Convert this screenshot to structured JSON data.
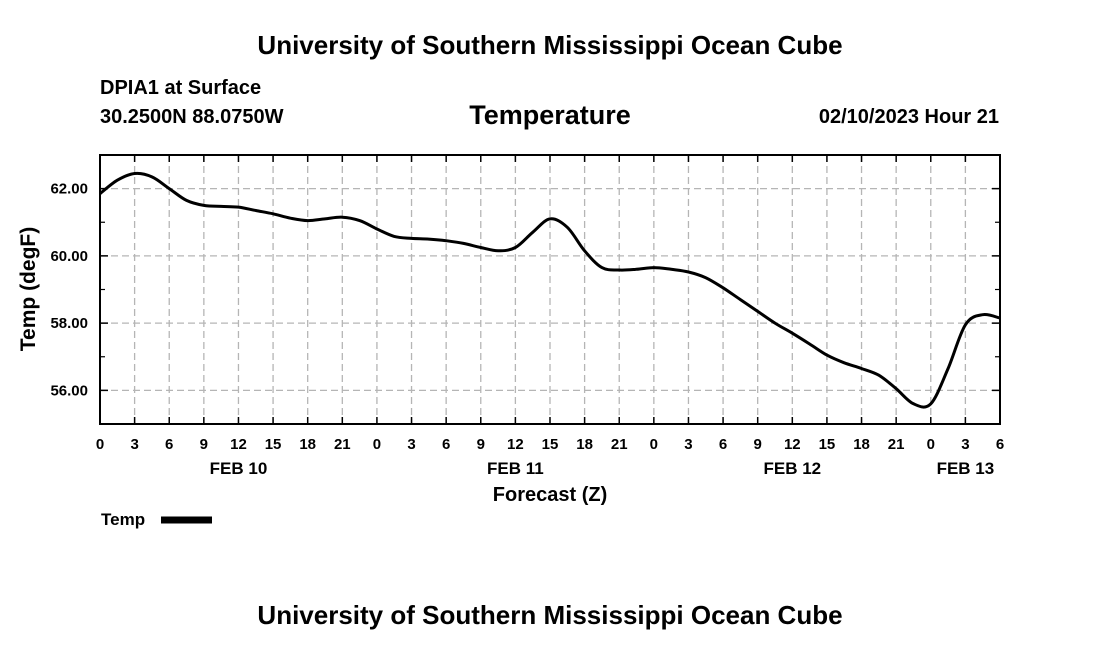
{
  "header": {
    "title": "University of Southern Mississippi Ocean Cube",
    "station": "DPIA1 at Surface",
    "coordinates": "30.2500N  88.0750W",
    "variable": "Temperature",
    "datetime": "02/10/2023 Hour 21"
  },
  "footer": {
    "title": "University of Southern Mississippi Ocean Cube"
  },
  "chart_data": {
    "type": "line",
    "ylabel": "Temp (degF)",
    "xlabel": "Forecast (Z)",
    "ylim": [
      55.0,
      63.0
    ],
    "xlim": [
      0,
      78
    ],
    "y_ticks": [
      56,
      58,
      60,
      62
    ],
    "y_tick_labels": [
      "56.00",
      "58.00",
      "60.00",
      "62.00"
    ],
    "x_tick_labels": [
      "0",
      "3",
      "6",
      "9",
      "12",
      "15",
      "18",
      "21",
      "0",
      "3",
      "6",
      "9",
      "12",
      "15",
      "18",
      "21",
      "0",
      "3",
      "6",
      "9",
      "12",
      "15",
      "18",
      "21",
      "0",
      "3",
      "6"
    ],
    "day_labels": [
      {
        "hour": 12,
        "label": "FEB 10"
      },
      {
        "hour": 36,
        "label": "FEB 11"
      },
      {
        "hour": 60,
        "label": "FEB 12"
      },
      {
        "hour": 75,
        "label": "FEB 13"
      }
    ],
    "grid": true,
    "legend": {
      "label": "Temp",
      "placement": "bottom-left"
    },
    "series": [
      {
        "name": "Temp",
        "color": "#000000",
        "x": [
          0,
          1.5,
          3,
          4.5,
          6,
          7.5,
          9,
          10.5,
          12,
          13.5,
          15,
          16.5,
          18,
          19.5,
          21,
          22.5,
          24,
          25.5,
          27,
          28.5,
          30,
          31.5,
          33,
          34.5,
          36,
          37.5,
          39,
          40.5,
          42,
          43.5,
          45,
          46.5,
          48,
          49.5,
          51,
          52.5,
          54,
          55.5,
          57,
          58.5,
          60,
          61.5,
          63,
          64.5,
          66,
          67.5,
          69,
          70.5,
          72,
          73.5,
          75,
          76.5,
          78
        ],
        "values": [
          61.85,
          62.25,
          62.45,
          62.35,
          62.0,
          61.65,
          61.5,
          61.47,
          61.45,
          61.35,
          61.25,
          61.12,
          61.05,
          61.1,
          61.15,
          61.05,
          60.8,
          60.58,
          60.52,
          60.5,
          60.45,
          60.37,
          60.25,
          60.15,
          60.25,
          60.7,
          61.1,
          60.85,
          60.15,
          59.65,
          59.58,
          59.6,
          59.65,
          59.6,
          59.52,
          59.35,
          59.05,
          58.7,
          58.35,
          58.0,
          57.7,
          57.38,
          57.05,
          56.82,
          56.65,
          56.45,
          56.05,
          55.6,
          55.6,
          56.65,
          57.95,
          58.25,
          58.15
        ]
      }
    ]
  }
}
